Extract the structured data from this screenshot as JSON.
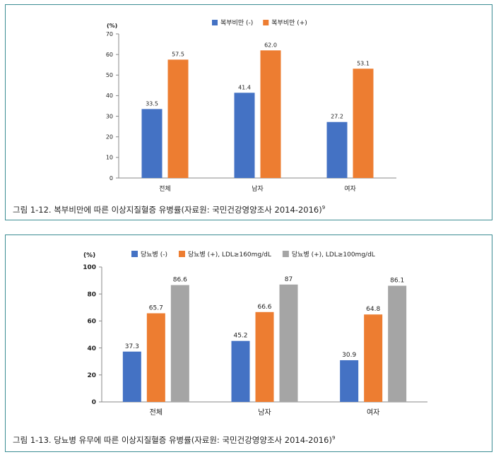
{
  "chart_data": [
    {
      "type": "bar",
      "ylabel": "(%)",
      "ylim": [
        0,
        70
      ],
      "yticks": [
        0,
        10,
        20,
        30,
        40,
        50,
        60,
        70
      ],
      "categories": [
        "전체",
        "남자",
        "여자"
      ],
      "series": [
        {
          "name": "복부비만 (-)",
          "values": [
            33.5,
            41.4,
            27.2
          ],
          "labels": [
            "33.5",
            "41.4",
            "27.2"
          ],
          "color": "#4472c4"
        },
        {
          "name": "복부비만 (+)",
          "values": [
            57.5,
            62.0,
            53.1
          ],
          "labels": [
            "57.5",
            "62.0",
            "53.1"
          ],
          "color": "#ed7d31"
        }
      ],
      "legend": "top",
      "caption": "그림 1-12. 복부비만에 따른 이상지질혈증 유병률(자료원: 국민건강영양조사 2014-2016)",
      "caption_sup": "9"
    },
    {
      "type": "bar",
      "ylabel": "(%)",
      "ylim": [
        0,
        100
      ],
      "yticks": [
        0,
        20,
        40,
        60,
        80,
        100
      ],
      "categories": [
        "전체",
        "남자",
        "여자"
      ],
      "series": [
        {
          "name": "당뇨병 (-)",
          "values": [
            37.3,
            45.2,
            30.9
          ],
          "labels": [
            "37.3",
            "45.2",
            "30.9"
          ],
          "color": "#4472c4"
        },
        {
          "name": "당뇨병 (+), LDL≥160mg/dL",
          "values": [
            65.7,
            66.6,
            64.8
          ],
          "labels": [
            "65.7",
            "66.6",
            "64.8"
          ],
          "color": "#ed7d31"
        },
        {
          "name": "당뇨병 (+), LDL≥100mg/dL",
          "values": [
            86.6,
            87,
            86.1
          ],
          "labels": [
            "86.6",
            "87",
            "86.1"
          ],
          "color": "#a5a5a5"
        }
      ],
      "legend": "top",
      "caption": "그림 1-13. 당뇨병 유무에 따른 이상지질혈증 유병률(자료원: 국민건강영양조사 2014-2016)",
      "caption_sup": "9"
    }
  ]
}
